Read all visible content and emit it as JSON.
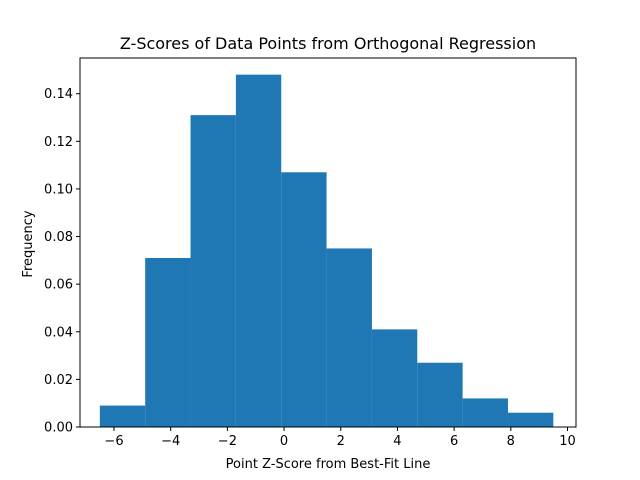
{
  "chart_data": {
    "type": "bar",
    "title": "Z-Scores of Data Points from Orthogonal Regression",
    "xlabel": "Point Z-Score from Best-Fit Line",
    "ylabel": "Frequency",
    "xlim": [
      -7.2,
      10.3
    ],
    "ylim": [
      0,
      0.155
    ],
    "xticks": [
      -6,
      -4,
      -2,
      0,
      2,
      4,
      6,
      8,
      10
    ],
    "yticks": [
      0.0,
      0.02,
      0.04,
      0.06,
      0.08,
      0.1,
      0.12,
      0.14
    ],
    "ytick_labels": [
      "0.00",
      "0.02",
      "0.04",
      "0.06",
      "0.08",
      "0.10",
      "0.12",
      "0.14"
    ],
    "bin_edges": [
      -6.5,
      -4.9,
      -3.3,
      -1.7,
      -0.1,
      1.5,
      3.1,
      4.7,
      6.3,
      7.9,
      9.5
    ],
    "values": [
      0.009,
      0.071,
      0.131,
      0.148,
      0.107,
      0.075,
      0.041,
      0.027,
      0.012,
      0.006
    ],
    "grid": false,
    "bar_color": "#1f77b4"
  }
}
